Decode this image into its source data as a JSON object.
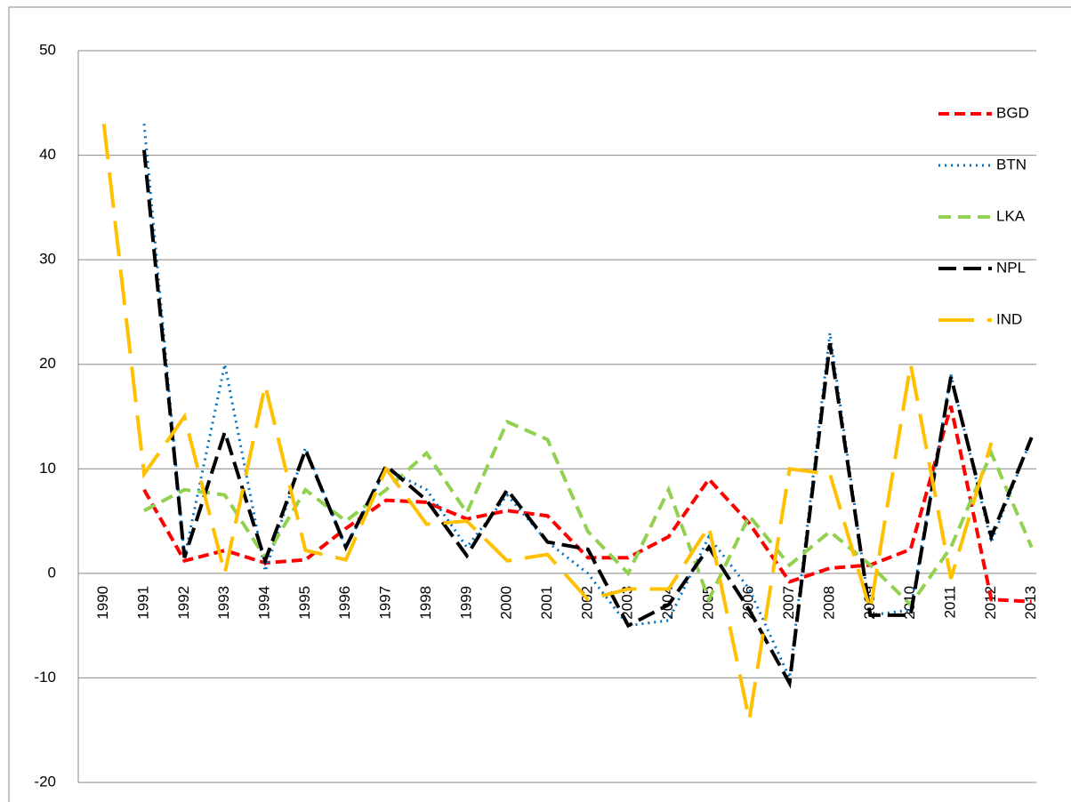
{
  "chart_data": {
    "type": "line",
    "categories": [
      "1990",
      "1991",
      "1992",
      "1993",
      "1994",
      "1995",
      "1996",
      "1997",
      "1998",
      "1999",
      "2000",
      "2001",
      "2002",
      "2003",
      "2004",
      "2005",
      "2006",
      "2007",
      "2008",
      "2009",
      "2010",
      "2011",
      "2012",
      "2013"
    ],
    "series": [
      {
        "name": "BGD",
        "color": "#ff0000",
        "values": [
          null,
          8,
          1.2,
          2.2,
          1,
          1.3,
          4.3,
          7,
          6.8,
          5.2,
          6,
          5.5,
          1.5,
          1.5,
          3.5,
          9,
          4.8,
          -0.8,
          0.5,
          0.8,
          2.3,
          16,
          -2.5,
          -2.7
        ]
      },
      {
        "name": "BTN",
        "color": "#0070c0",
        "values": [
          null,
          43,
          1.5,
          20,
          0.2,
          12,
          2.5,
          10,
          8,
          2.5,
          7.5,
          3,
          0,
          -5,
          -4.5,
          3.5,
          -1.5,
          -10,
          23,
          -4,
          -3.5,
          19,
          3,
          13
        ]
      },
      {
        "name": "LKA",
        "color": "#92d050",
        "values": [
          null,
          6,
          8,
          7.5,
          1.5,
          8,
          5,
          8,
          11.5,
          5.8,
          14.5,
          12.8,
          4,
          0,
          8,
          -2.5,
          5.5,
          0.8,
          4,
          0.8,
          -3,
          2.5,
          11.5,
          2.5
        ]
      },
      {
        "name": "NPL",
        "color": "#000000",
        "values": [
          null,
          40.5,
          1.5,
          13.5,
          1.2,
          11.8,
          2.5,
          10.3,
          7,
          1.7,
          8,
          3,
          2.3,
          -5,
          -3,
          2.5,
          -3.5,
          -10.5,
          22,
          -4,
          -4,
          18.8,
          3.5,
          13
        ]
      },
      {
        "name": "IND",
        "color": "#ffc000",
        "values": [
          43,
          9.5,
          15,
          0,
          18,
          2.2,
          1.3,
          10,
          4.7,
          5,
          1.2,
          1.8,
          -2.5,
          -1.5,
          -1.5,
          4.5,
          -14,
          10,
          9.5,
          -3.5,
          20,
          -0.5,
          12.5,
          null
        ]
      }
    ],
    "ylim": [
      -20,
      50
    ],
    "yticks": [
      -20,
      -10,
      0,
      10,
      20,
      30,
      40,
      50
    ],
    "grid": true,
    "legend": "right"
  }
}
